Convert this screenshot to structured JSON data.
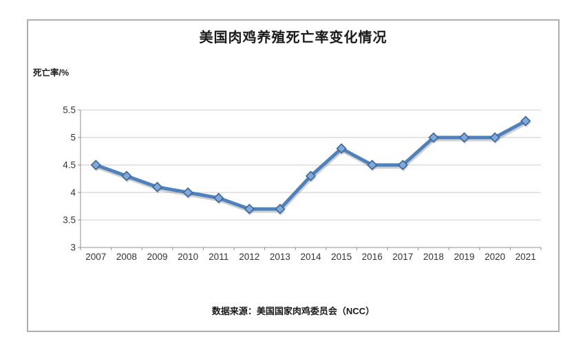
{
  "chart": {
    "title": "美国肉鸡养殖死亡率变化情况",
    "y_unit_label": "死亡率/%",
    "source_note": "数据来源：美国国家肉鸡委员会（NCC）"
  },
  "chart_data": {
    "type": "line",
    "title": "美国肉鸡养殖死亡率变化情况",
    "xlabel": "",
    "ylabel": "死亡率/%",
    "source": "数据来源：美国国家肉鸡委员会（NCC）",
    "categories": [
      "2007",
      "2008",
      "2009",
      "2010",
      "2011",
      "2012",
      "2013",
      "2014",
      "2015",
      "2016",
      "2017",
      "2018",
      "2019",
      "2020",
      "2021"
    ],
    "values": [
      4.5,
      4.3,
      4.1,
      4.0,
      3.9,
      3.7,
      3.7,
      4.3,
      4.8,
      4.5,
      4.5,
      5.0,
      5.0,
      5.0,
      5.3
    ],
    "series_name": "死亡率",
    "ylim": [
      3,
      5.5
    ],
    "ytick_step": 0.5,
    "ytick_labels": [
      "3",
      "3.5",
      "4",
      "4.5",
      "5",
      "5.5"
    ],
    "grid": true,
    "legend_position": "none",
    "marker_shape": "diamond",
    "colors": {
      "line": "#4F81BD",
      "marker_fill": "#7FA8DB",
      "marker_stroke": "#3C6899",
      "gridline": "#c8c8c8",
      "axis": "#8e8e8e",
      "tick_label": "#333333",
      "frame_border": "#aeaeae",
      "shadow": "#7a7a7a"
    }
  }
}
